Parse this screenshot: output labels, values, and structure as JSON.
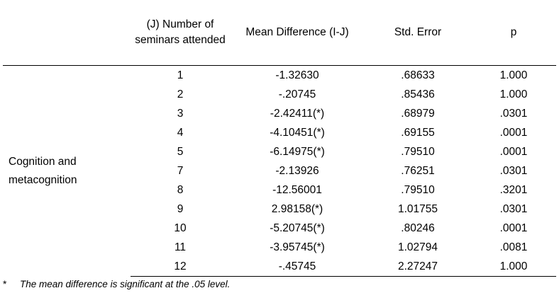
{
  "table": {
    "headers": {
      "label": "",
      "j": "(J) Number of seminars attended",
      "mean_diff": "Mean Difference (I-J)",
      "std_error": "Std. Error",
      "p": "p"
    },
    "group_label": "Cognition and metacognition",
    "rows": [
      {
        "j": "1",
        "mean_diff": "-1.32630",
        "std_error": ".68633",
        "p": "1.000"
      },
      {
        "j": "2",
        "mean_diff": "-.20745",
        "std_error": ".85436",
        "p": "1.000"
      },
      {
        "j": "3",
        "mean_diff": "-2.42411(*)",
        "std_error": ".68979",
        "p": ".0301"
      },
      {
        "j": "4",
        "mean_diff": "-4.10451(*)",
        "std_error": ".69155",
        "p": ".0001"
      },
      {
        "j": "5",
        "mean_diff": "-6.14975(*)",
        "std_error": ".79510",
        "p": ".0001"
      },
      {
        "j": "7",
        "mean_diff": "-2.13926",
        "std_error": ".76251",
        "p": ".0301"
      },
      {
        "j": "8",
        "mean_diff": "-12.56001",
        "std_error": ".79510",
        "p": ".3201"
      },
      {
        "j": "9",
        "mean_diff": "2.98158(*)",
        "std_error": "1.01755",
        "p": ".0301"
      },
      {
        "j": "10",
        "mean_diff": "-5.20745(*)",
        "std_error": ".80246",
        "p": ".0001"
      },
      {
        "j": "11",
        "mean_diff": "-3.95745(*)",
        "std_error": "1.02794",
        "p": ".0081"
      },
      {
        "j": "12",
        "mean_diff": "-.45745",
        "std_error": "2.27247",
        "p": "1.000"
      }
    ]
  },
  "footnote": {
    "mark": "*",
    "text": "The mean difference is significant at the .05 level."
  }
}
